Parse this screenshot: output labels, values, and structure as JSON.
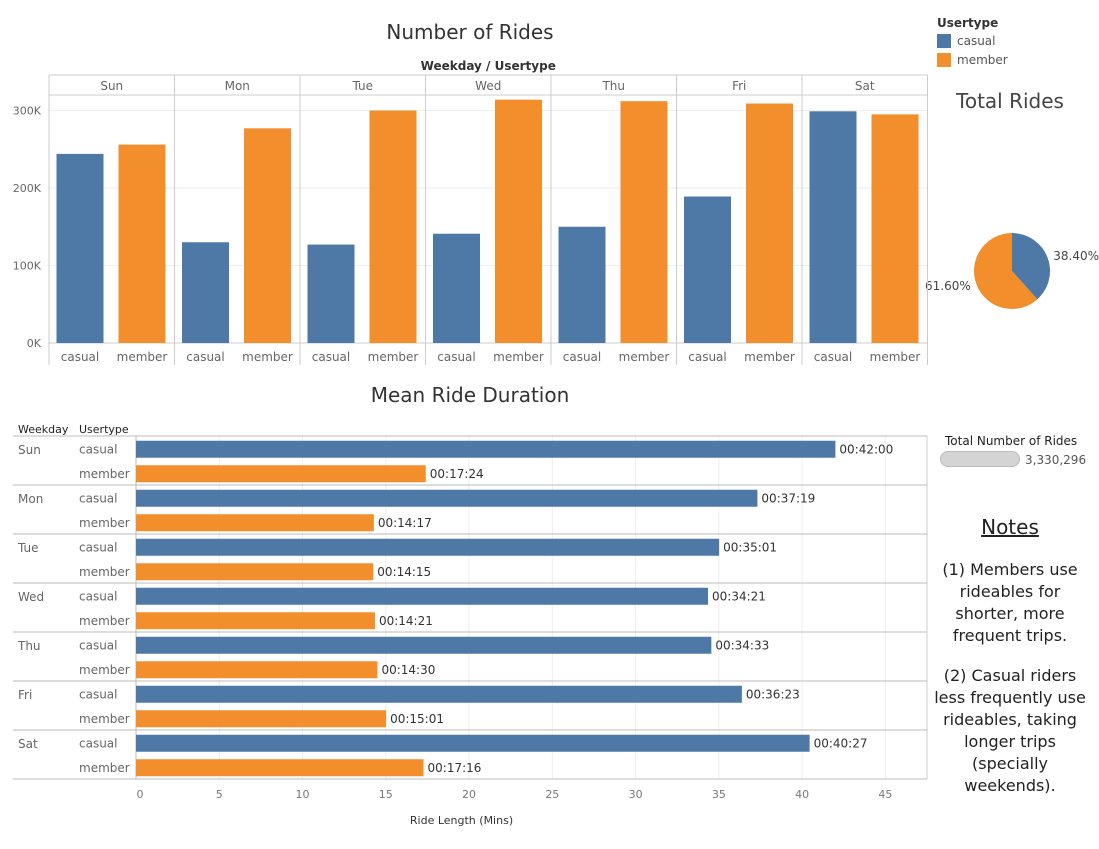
{
  "colors": {
    "casual": "#4e79a7",
    "member": "#f28e2b"
  },
  "legend": {
    "title": "Usertype",
    "items": [
      {
        "label": "casual",
        "color": "#4e79a7"
      },
      {
        "label": "member",
        "color": "#f28e2b"
      }
    ]
  },
  "total_number_of_rides": {
    "label": "Total Number of Rides",
    "value": "3,330,296"
  },
  "notes": {
    "title": "Notes",
    "lines1": [
      "(1) Members use",
      "rideables for",
      "shorter, more",
      "frequent trips."
    ],
    "lines2": [
      "(2) Casual riders",
      "less frequently use",
      "rideables, taking",
      "longer trips",
      "(specially",
      "weekends)."
    ]
  },
  "chart_data": [
    {
      "type": "bar",
      "title": "Number of Rides",
      "header": "Weekday / Usertype",
      "categories": [
        "Sun",
        "Mon",
        "Tue",
        "Wed",
        "Thu",
        "Fri",
        "Sat"
      ],
      "subcategories": [
        "casual",
        "member"
      ],
      "series": [
        {
          "name": "casual",
          "values": [
            244000,
            130000,
            127000,
            141000,
            150000,
            189000,
            299000
          ]
        },
        {
          "name": "member",
          "values": [
            256000,
            277000,
            300000,
            314000,
            312000,
            309000,
            295000
          ]
        }
      ],
      "yticks": [
        "0K",
        "100K",
        "200K",
        "300K"
      ],
      "ytick_values": [
        0,
        100000,
        200000,
        300000
      ],
      "ylim": [
        0,
        320000
      ]
    },
    {
      "type": "pie",
      "title": "Total Rides",
      "slices": [
        {
          "name": "casual",
          "value": 38.4,
          "label": "38.40%"
        },
        {
          "name": "member",
          "value": 61.6,
          "label": "61.60%"
        }
      ]
    },
    {
      "type": "bar",
      "orientation": "horizontal",
      "title": "Mean Ride Duration",
      "row_headers": [
        "Weekday",
        "Usertype"
      ],
      "categories": [
        "Sun",
        "Mon",
        "Tue",
        "Wed",
        "Thu",
        "Fri",
        "Sat"
      ],
      "subcategories": [
        "casual",
        "member"
      ],
      "series": [
        {
          "name": "casual",
          "values": [
            42.0,
            37.317,
            35.017,
            34.35,
            34.55,
            36.383,
            40.45
          ],
          "labels": [
            "00:42:00",
            "00:37:19",
            "00:35:01",
            "00:34:21",
            "00:34:33",
            "00:36:23",
            "00:40:27"
          ]
        },
        {
          "name": "member",
          "values": [
            17.4,
            14.283,
            14.25,
            14.35,
            14.5,
            15.017,
            17.267
          ],
          "labels": [
            "00:17:24",
            "00:14:17",
            "00:14:15",
            "00:14:21",
            "00:14:30",
            "00:15:01",
            "00:17:16"
          ]
        }
      ],
      "xlabel": "Ride Length (Mins)",
      "xticks": [
        0,
        5,
        10,
        15,
        20,
        25,
        30,
        35,
        40,
        45
      ],
      "xlim": [
        0,
        47.5
      ]
    }
  ]
}
